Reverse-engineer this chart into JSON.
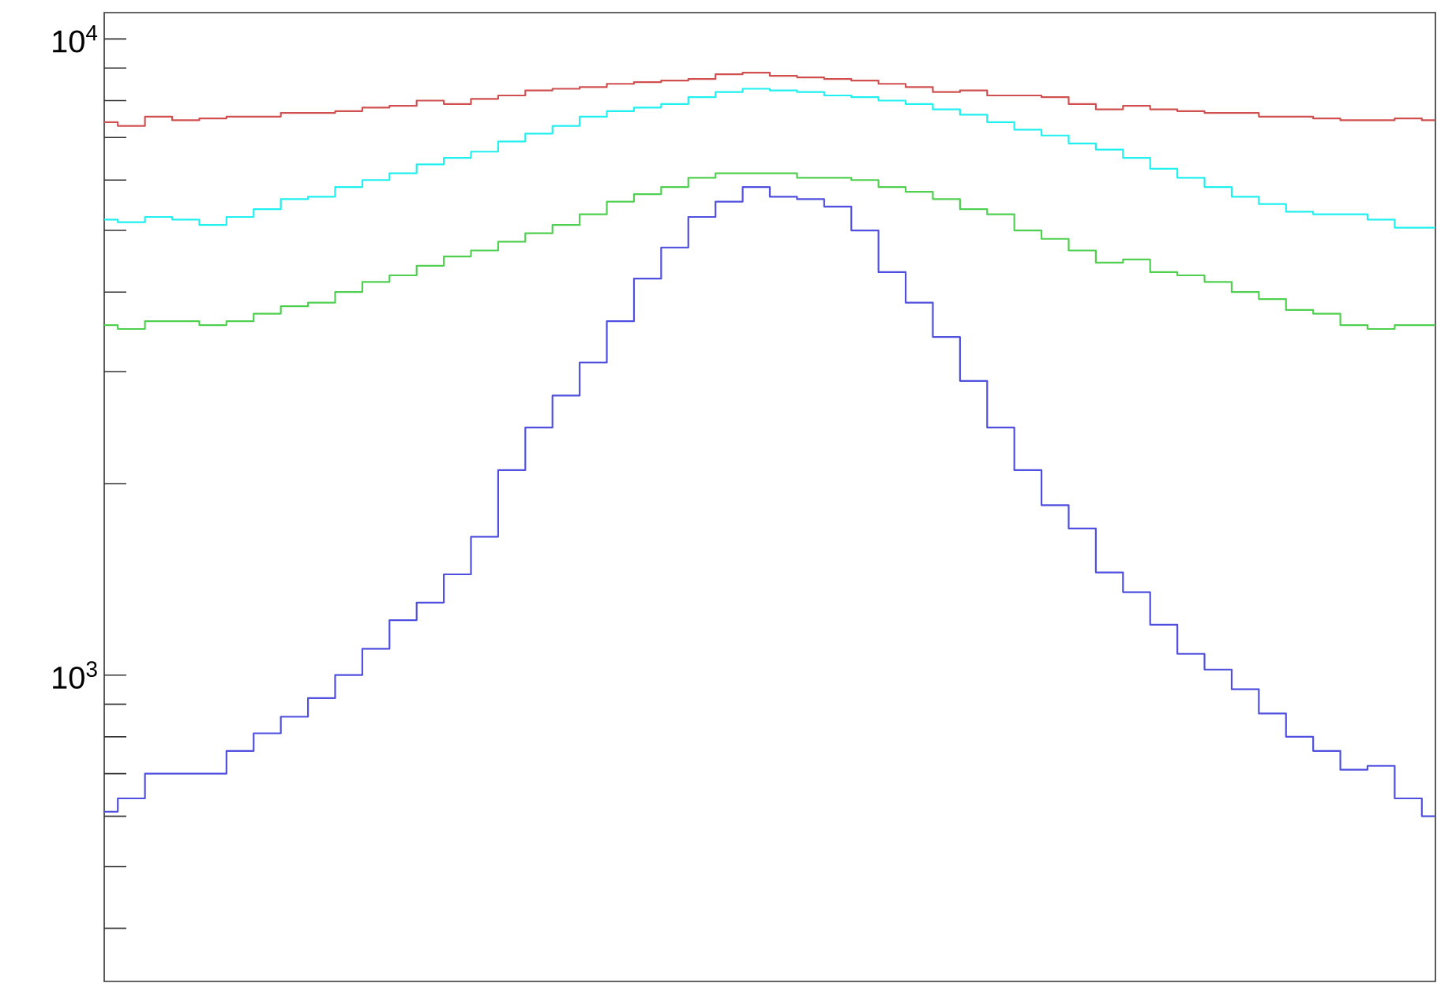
{
  "chart_data": {
    "type": "step",
    "categories": [
      null,
      null,
      null,
      null,
      null,
      null,
      null,
      null,
      null,
      null,
      null,
      null,
      null,
      null,
      null,
      null,
      null,
      null,
      null,
      null,
      null,
      null,
      null,
      null,
      null,
      null,
      null,
      null,
      null,
      null,
      null,
      null,
      null,
      null,
      null,
      null,
      null,
      null,
      null,
      null,
      null,
      null,
      null,
      null,
      null,
      null,
      null,
      null,
      null,
      null
    ],
    "series": [
      {
        "color": "#d05050",
        "values": [
          7400,
          7300,
          7550,
          7450,
          7500,
          7550,
          7550,
          7650,
          7650,
          7700,
          7800,
          7850,
          8000,
          7900,
          8050,
          8150,
          8300,
          8350,
          8400,
          8500,
          8550,
          8600,
          8650,
          8800,
          8850,
          8750,
          8700,
          8650,
          8600,
          8500,
          8400,
          8250,
          8300,
          8150,
          8150,
          8100,
          7900,
          7750,
          7850,
          7750,
          7700,
          7650,
          7650,
          7550,
          7550,
          7500,
          7450,
          7450,
          7500,
          7450
        ]
      },
      {
        "color": "#20f0f0",
        "values": [
          5200,
          5150,
          5250,
          5200,
          5100,
          5250,
          5400,
          5600,
          5650,
          5850,
          6000,
          6150,
          6350,
          6500,
          6650,
          6900,
          7100,
          7300,
          7550,
          7700,
          7800,
          7900,
          8100,
          8250,
          8350,
          8300,
          8250,
          8150,
          8100,
          8000,
          7900,
          7750,
          7600,
          7400,
          7200,
          7050,
          6850,
          6700,
          6500,
          6250,
          6050,
          5850,
          5650,
          5500,
          5350,
          5300,
          5300,
          5200,
          5050,
          5050
        ]
      },
      {
        "color": "#50d050",
        "values": [
          3550,
          3500,
          3600,
          3600,
          3550,
          3600,
          3700,
          3800,
          3850,
          4000,
          4150,
          4250,
          4400,
          4550,
          4650,
          4800,
          4950,
          5100,
          5300,
          5550,
          5700,
          5850,
          6050,
          6150,
          6150,
          6150,
          6050,
          6050,
          6000,
          5850,
          5750,
          5600,
          5400,
          5300,
          5000,
          4850,
          4650,
          4450,
          4500,
          4300,
          4250,
          4150,
          4000,
          3900,
          3750,
          3700,
          3550,
          3500,
          3550,
          3550
        ]
      },
      {
        "color": "#5050e0",
        "values": [
          610,
          640,
          700,
          700,
          700,
          760,
          810,
          860,
          920,
          1000,
          1100,
          1220,
          1300,
          1440,
          1650,
          2100,
          2450,
          2750,
          3100,
          3600,
          4200,
          4700,
          5250,
          5550,
          5850,
          5650,
          5600,
          5450,
          5000,
          4300,
          3850,
          3400,
          2900,
          2450,
          2100,
          1850,
          1700,
          1450,
          1350,
          1200,
          1080,
          1020,
          950,
          870,
          800,
          760,
          710,
          720,
          640,
          600
        ]
      }
    ],
    "log": true,
    "ylim": [
      330,
      11000
    ],
    "yticks": [
      {
        "value": 400,
        "label": null
      },
      {
        "value": 500,
        "label": null
      },
      {
        "value": 600,
        "label": null
      },
      {
        "value": 700,
        "label": null
      },
      {
        "value": 800,
        "label": null
      },
      {
        "value": 900,
        "label": null
      },
      {
        "value": 1000,
        "label": "10$^{3}$"
      },
      {
        "value": 2000,
        "label": null
      },
      {
        "value": 3000,
        "label": null
      },
      {
        "value": 4000,
        "label": null
      },
      {
        "value": 5000,
        "label": null
      },
      {
        "value": 6000,
        "label": null
      },
      {
        "value": 7000,
        "label": null
      },
      {
        "value": 8000,
        "label": null
      },
      {
        "value": 9000,
        "label": null
      },
      {
        "value": 10000,
        "label": "10$^{4}$"
      }
    ],
    "tick_labels": "y"
  }
}
